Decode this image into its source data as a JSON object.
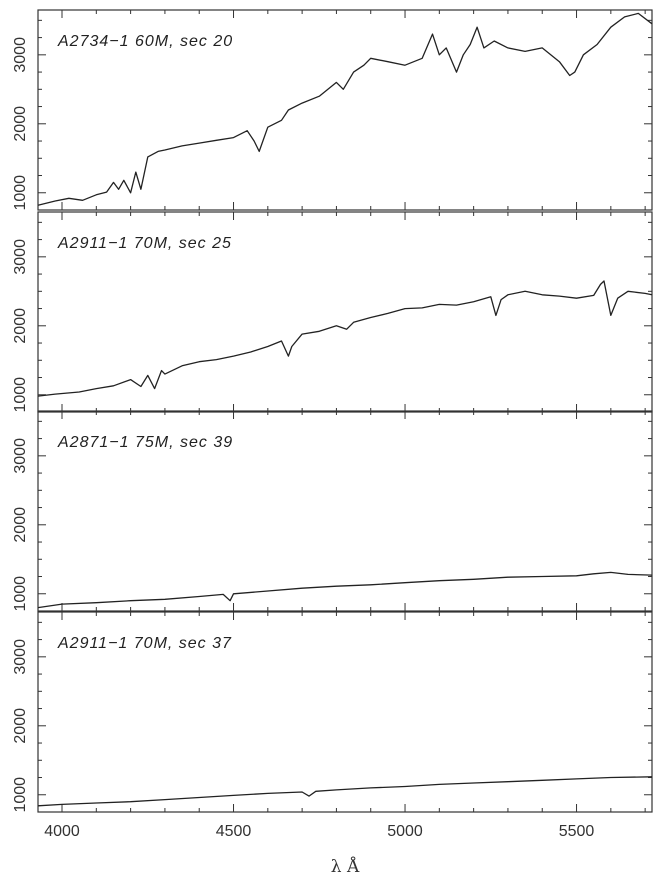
{
  "chart_data": {
    "type": "line",
    "layout": "stacked panels sharing x axis",
    "xlabel": "λ Å",
    "xlim": [
      3930,
      5720
    ],
    "x_ticks": [
      4000,
      4500,
      5000,
      5500
    ],
    "ylim": [
      750,
      3650
    ],
    "y_ticks": [
      1000,
      2000,
      3000
    ],
    "panels": [
      {
        "label": "A2734−1 60M, sec 20",
        "series": {
          "x": [
            3930,
            3980,
            4020,
            4060,
            4100,
            4130,
            4150,
            4165,
            4180,
            4200,
            4215,
            4230,
            4250,
            4280,
            4300,
            4350,
            4400,
            4450,
            4500,
            4540,
            4560,
            4575,
            4600,
            4640,
            4660,
            4700,
            4750,
            4800,
            4820,
            4850,
            4880,
            4900,
            4950,
            5000,
            5050,
            5080,
            5100,
            5120,
            5150,
            5170,
            5190,
            5210,
            5230,
            5260,
            5300,
            5350,
            5400,
            5450,
            5480,
            5495,
            5520,
            5560,
            5600,
            5640,
            5680,
            5720
          ],
          "y": [
            820,
            880,
            920,
            890,
            970,
            1010,
            1150,
            1050,
            1180,
            1000,
            1300,
            1050,
            1520,
            1600,
            1620,
            1680,
            1720,
            1760,
            1800,
            1900,
            1750,
            1600,
            1950,
            2050,
            2200,
            2300,
            2400,
            2600,
            2500,
            2750,
            2850,
            2950,
            2900,
            2850,
            2950,
            3300,
            3000,
            3100,
            2750,
            3000,
            3150,
            3400,
            3100,
            3200,
            3100,
            3050,
            3100,
            2900,
            2700,
            2750,
            3000,
            3150,
            3400,
            3550,
            3600,
            3450
          ]
        }
      },
      {
        "label": "A2911−1 70M, sec 25",
        "series": {
          "x": [
            3930,
            3980,
            4050,
            4100,
            4150,
            4200,
            4230,
            4250,
            4270,
            4290,
            4300,
            4350,
            4400,
            4450,
            4500,
            4550,
            4600,
            4640,
            4660,
            4670,
            4700,
            4750,
            4800,
            4830,
            4850,
            4900,
            4950,
            5000,
            5050,
            5100,
            5150,
            5200,
            5250,
            5265,
            5280,
            5300,
            5350,
            5400,
            5450,
            5500,
            5550,
            5570,
            5580,
            5600,
            5620,
            5650,
            5700,
            5720
          ],
          "y": [
            980,
            1010,
            1040,
            1090,
            1130,
            1220,
            1120,
            1280,
            1090,
            1350,
            1300,
            1420,
            1480,
            1510,
            1560,
            1620,
            1700,
            1780,
            1560,
            1700,
            1880,
            1920,
            2000,
            1950,
            2050,
            2120,
            2180,
            2250,
            2260,
            2310,
            2300,
            2350,
            2420,
            2150,
            2380,
            2450,
            2500,
            2450,
            2430,
            2400,
            2440,
            2600,
            2650,
            2150,
            2400,
            2500,
            2470,
            2450
          ]
        }
      },
      {
        "label": "A2871−1 75M, sec 39",
        "series": {
          "x": [
            3930,
            4000,
            4100,
            4200,
            4300,
            4400,
            4470,
            4490,
            4500,
            4600,
            4700,
            4800,
            4900,
            5000,
            5100,
            5200,
            5300,
            5400,
            5500,
            5550,
            5600,
            5650,
            5720
          ],
          "y": [
            800,
            850,
            870,
            900,
            920,
            960,
            990,
            900,
            1000,
            1040,
            1080,
            1110,
            1130,
            1160,
            1190,
            1210,
            1240,
            1250,
            1260,
            1290,
            1310,
            1280,
            1270
          ]
        }
      },
      {
        "label": "A2911−1 70M, sec 37",
        "series": {
          "x": [
            3930,
            4000,
            4100,
            4200,
            4300,
            4400,
            4500,
            4600,
            4700,
            4720,
            4740,
            4800,
            4900,
            5000,
            5100,
            5200,
            5300,
            5400,
            5500,
            5600,
            5720
          ],
          "y": [
            840,
            860,
            880,
            900,
            930,
            960,
            990,
            1020,
            1040,
            980,
            1050,
            1070,
            1100,
            1120,
            1150,
            1170,
            1190,
            1210,
            1230,
            1250,
            1260
          ]
        }
      }
    ]
  }
}
